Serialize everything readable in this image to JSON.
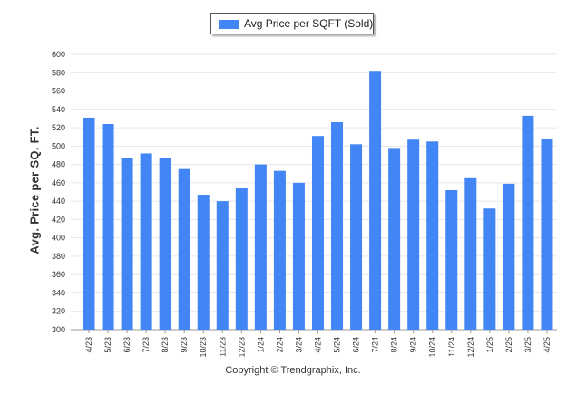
{
  "legend": {
    "label": "Avg Price per SQFT (Sold)"
  },
  "footer": {
    "text": "Copyright © Trendgraphix, Inc."
  },
  "chart_data": {
    "type": "bar",
    "categories": [
      "4/23",
      "5/23",
      "6/23",
      "7/23",
      "8/23",
      "9/23",
      "10/23",
      "11/23",
      "12/23",
      "1/24",
      "2/24",
      "3/24",
      "4/24",
      "5/24",
      "6/24",
      "7/24",
      "8/24",
      "9/24",
      "10/24",
      "11/24",
      "12/24",
      "1/25",
      "2/25",
      "3/25",
      "4/25"
    ],
    "series": [
      {
        "name": "Avg Price per SQFT (Sold)",
        "values": [
          531,
          524,
          487,
          492,
          487,
          475,
          447,
          440,
          454,
          480,
          473,
          460,
          511,
          526,
          502,
          582,
          498,
          507,
          505,
          452,
          465,
          432,
          459,
          533,
          508
        ]
      }
    ],
    "ylabel": "Avg. Price per SQ. FT.",
    "xlabel": "",
    "ylim": [
      300,
      600
    ],
    "yticks": [
      300,
      320,
      340,
      360,
      380,
      400,
      420,
      440,
      460,
      480,
      500,
      520,
      540,
      560,
      580,
      600
    ],
    "grid": true,
    "legend_position": "top-center",
    "bar_color": "#4285f4"
  }
}
